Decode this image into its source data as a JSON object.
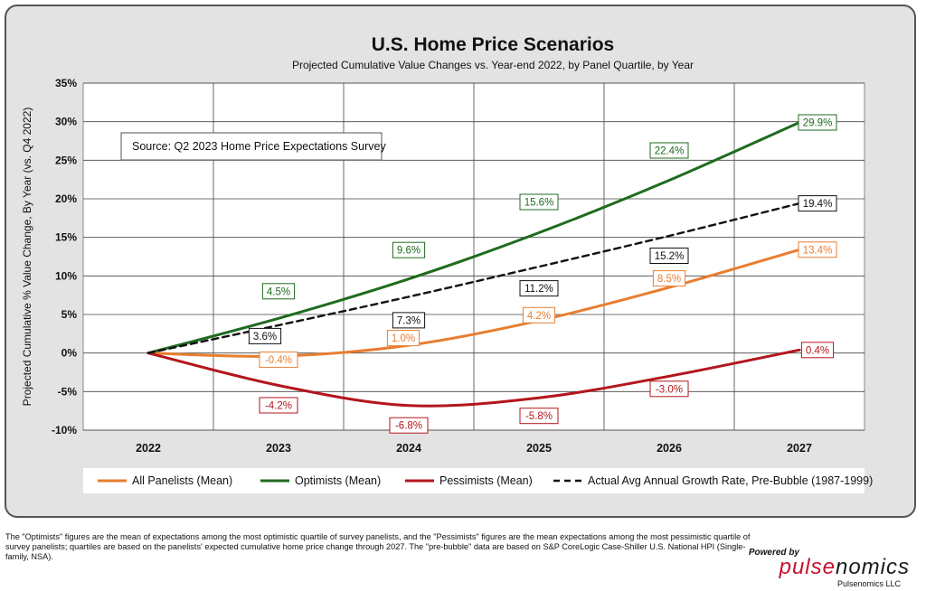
{
  "chart_data": {
    "type": "line",
    "title": "U.S. Home Price Scenarios",
    "subtitle": "Projected Cumulative Value Changes vs. Year-end 2022, by Panel Quartile, by Year",
    "ylabel": "Projected Cumulative % Value Change, By Year  (vs. Q4 2022)",
    "xlabel": "",
    "x": [
      "2022",
      "2023",
      "2024",
      "2025",
      "2026",
      "2027"
    ],
    "ylim": [
      -10,
      35
    ],
    "yticks": [
      35,
      30,
      25,
      20,
      15,
      10,
      5,
      0,
      -5,
      -10
    ],
    "ytick_labels": [
      "35%",
      "30%",
      "25%",
      "20%",
      "15%",
      "10%",
      "5%",
      "0%",
      "-5%",
      "-10%"
    ],
    "grid": true,
    "legend_position": "bottom",
    "annotation": "Source: Q2 2023 Home Price Expectations Survey",
    "series": [
      {
        "name": "All Panelists (Mean)",
        "color": "#e87d2f",
        "dash": false,
        "values": [
          0,
          -0.4,
          1.0,
          4.2,
          8.5,
          13.4
        ],
        "labels": [
          "",
          "-0.4%",
          "1.0%",
          "4.2%",
          "8.5%",
          "13.4%"
        ]
      },
      {
        "name": "Optimists (Mean)",
        "color": "#1f6b1f",
        "dash": false,
        "values": [
          0,
          4.5,
          9.6,
          15.6,
          22.4,
          29.9
        ],
        "labels": [
          "",
          "4.5%",
          "9.6%",
          "15.6%",
          "22.4%",
          "29.9%"
        ]
      },
      {
        "name": "Pessimists (Mean)",
        "color": "#b3161c",
        "dash": false,
        "values": [
          0,
          -4.2,
          -6.8,
          -5.8,
          -3.0,
          0.4
        ],
        "labels": [
          "",
          "-4.2%",
          "-6.8%",
          "-5.8%",
          "-3.0%",
          "0.4%"
        ]
      },
      {
        "name": "Actual Avg Annual Growth Rate, Pre-Bubble (1987-1999)",
        "color": "#111111",
        "dash": true,
        "values": [
          0,
          3.6,
          7.3,
          11.2,
          15.2,
          19.4
        ],
        "labels": [
          "",
          "3.6%",
          "7.3%",
          "11.2%",
          "15.2%",
          "19.4%"
        ]
      }
    ]
  },
  "footnote": "The \"Optimists\" figures are the mean of expectations  among the most optimistic quartile of survey panelists, and the \"Pessimists\" figures are the mean expectations  among the most pessimistic quartile of survey panelists; quartiles are  based on the panelists' expected cumulative home price change through 2027.  The \"pre-bubble\" data  are based on S&P CoreLogic Case-Shiller U.S. National HPI (Single-family, NSA).",
  "brand": {
    "powered_by": "Powered by",
    "logo_part1": "pulse",
    "logo_part2": "nomics",
    "company": "Pulsenomics LLC"
  }
}
